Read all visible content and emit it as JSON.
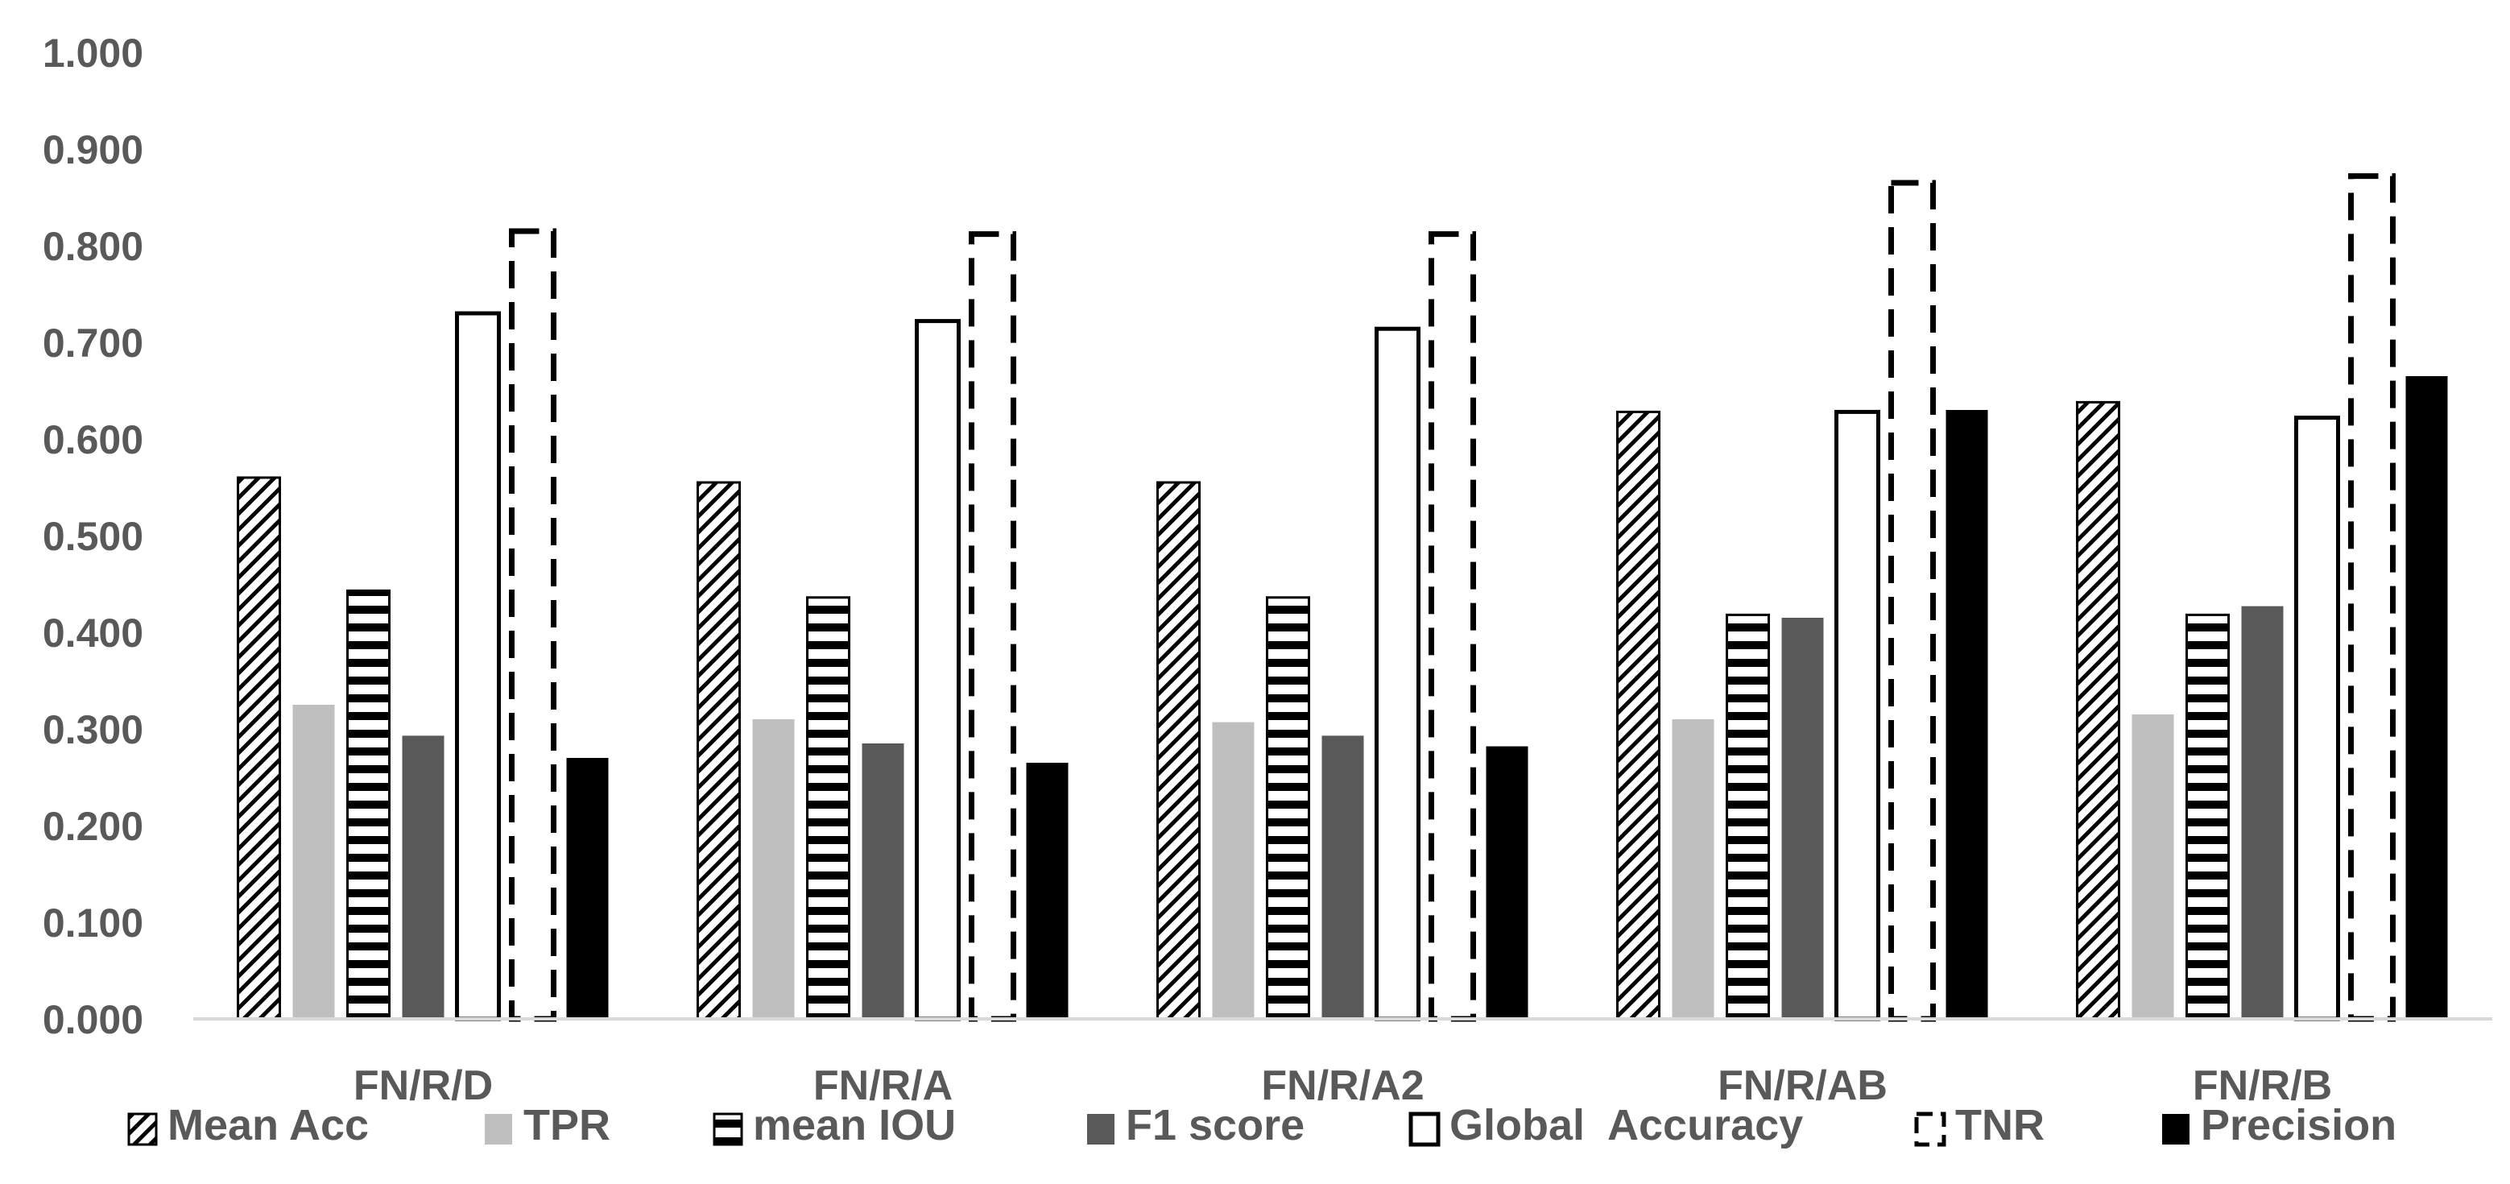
{
  "chart_data": {
    "type": "bar",
    "title": "",
    "xlabel": "",
    "ylabel": "",
    "categories": [
      "FN/R/D",
      "FN/R/A",
      "FN/R/A2",
      "FN/R/AB",
      "FN/R/B"
    ],
    "series": [
      {
        "name": "Mean Acc",
        "pattern": "diagonal-hatch",
        "color": "#000000",
        "values": [
          0.56,
          0.555,
          0.555,
          0.628,
          0.638
        ]
      },
      {
        "name": "TPR",
        "pattern": "solid",
        "color": "#bfbfbf",
        "values": [
          0.325,
          0.31,
          0.307,
          0.31,
          0.315
        ]
      },
      {
        "name": "mean IOU",
        "pattern": "horizontal-stripes",
        "color": "#000000",
        "values": [
          0.443,
          0.436,
          0.436,
          0.418,
          0.418
        ]
      },
      {
        "name": "F1 score",
        "pattern": "solid",
        "color": "#595959",
        "values": [
          0.293,
          0.285,
          0.293,
          0.415,
          0.427
        ]
      },
      {
        "name": "Global  Accuracy",
        "pattern": "outline",
        "color": "#ffffff",
        "values": [
          0.73,
          0.722,
          0.714,
          0.628,
          0.622
        ]
      },
      {
        "name": "TNR",
        "pattern": "dashed-outline",
        "color": "#ffffff",
        "values": [
          0.815,
          0.812,
          0.812,
          0.865,
          0.872
        ]
      },
      {
        "name": "Precision",
        "pattern": "solid",
        "color": "#000000",
        "values": [
          0.27,
          0.265,
          0.282,
          0.63,
          0.665
        ]
      }
    ],
    "ylim": [
      0,
      1.0
    ],
    "yticks": [
      "0.000",
      "0.100",
      "0.200",
      "0.300",
      "0.400",
      "0.500",
      "0.600",
      "0.700",
      "0.800",
      "0.900",
      "1.000"
    ],
    "grid": false,
    "legend_position": "bottom"
  }
}
